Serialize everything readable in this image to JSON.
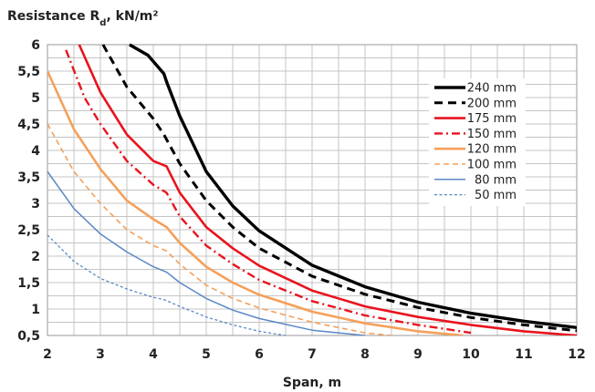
{
  "chart_data": {
    "type": "line",
    "title": "Resistance R",
    "title_subscript": "d",
    "title_suffix": ", kN/m²",
    "xlabel": "Span, m",
    "ylabel": "",
    "xlim": [
      2,
      12
    ],
    "ylim": [
      0.5,
      6
    ],
    "x_ticks": [
      "2",
      "3",
      "4",
      "5",
      "6",
      "7",
      "8",
      "9",
      "10",
      "11",
      "12"
    ],
    "y_ticks": [
      "0,5",
      "1",
      "1,5",
      "2",
      "2,5",
      "3",
      "3,5",
      "4",
      "4,5",
      "5",
      "5,5",
      "6"
    ],
    "grid": true,
    "legend_position": "top-right",
    "series": [
      {
        "name": "240 mm",
        "color": "#000000",
        "style": "solid-thick",
        "x": [
          3.55,
          3.9,
          4.2,
          4.25,
          4.5,
          5,
          5.5,
          6,
          7,
          8,
          9,
          10,
          11,
          12
        ],
        "y": [
          6.0,
          5.8,
          5.45,
          5.3,
          4.65,
          3.6,
          2.95,
          2.48,
          1.83,
          1.42,
          1.13,
          0.92,
          0.77,
          0.65
        ]
      },
      {
        "name": "200 mm",
        "color": "#000000",
        "style": "dashed",
        "x": [
          3.05,
          3.5,
          4.0,
          4.2,
          4.5,
          5,
          5.5,
          6,
          7,
          8,
          9,
          10,
          11,
          12
        ],
        "y": [
          6.0,
          5.2,
          4.6,
          4.3,
          3.75,
          3.05,
          2.55,
          2.15,
          1.62,
          1.28,
          1.03,
          0.84,
          0.7,
          0.59
        ]
      },
      {
        "name": "175 mm",
        "color": "#e8141e",
        "style": "solid",
        "x": [
          2.6,
          3,
          3.5,
          4,
          4.25,
          4.5,
          5,
          5.5,
          6,
          7,
          8,
          9,
          10,
          11,
          12
        ],
        "y": [
          6.0,
          5.1,
          4.3,
          3.8,
          3.7,
          3.2,
          2.55,
          2.15,
          1.82,
          1.35,
          1.05,
          0.85,
          0.7,
          0.58,
          0.5
        ]
      },
      {
        "name": "150 mm",
        "color": "#e8141e",
        "style": "dash-dot",
        "x": [
          2.35,
          2.7,
          3,
          3.5,
          4,
          4.25,
          4.5,
          5,
          5.5,
          6,
          7,
          8,
          9,
          10
        ],
        "y": [
          5.9,
          5.0,
          4.5,
          3.8,
          3.35,
          3.2,
          2.75,
          2.2,
          1.85,
          1.55,
          1.15,
          0.88,
          0.7,
          0.55
        ]
      },
      {
        "name": "120 mm",
        "color": "#f5a05a",
        "style": "solid",
        "x": [
          2.0,
          2.5,
          3,
          3.5,
          4,
          4.25,
          4.5,
          5,
          5.5,
          6,
          7,
          8,
          9,
          9.85
        ],
        "y": [
          5.5,
          4.4,
          3.65,
          3.05,
          2.7,
          2.55,
          2.25,
          1.8,
          1.5,
          1.27,
          0.95,
          0.73,
          0.58,
          0.5
        ]
      },
      {
        "name": "100 mm",
        "color": "#f5a05a",
        "style": "dashed-thin",
        "x": [
          2.0,
          2.5,
          3,
          3.5,
          4,
          4.25,
          4.5,
          5,
          5.5,
          6,
          7,
          8,
          8.5
        ],
        "y": [
          4.5,
          3.6,
          3.0,
          2.5,
          2.2,
          2.1,
          1.85,
          1.45,
          1.2,
          1.02,
          0.75,
          0.55,
          0.5
        ]
      },
      {
        "name": "80 mm",
        "color": "#5a87c6",
        "style": "solid-thin",
        "x": [
          2.0,
          2.5,
          3,
          3.5,
          4,
          4.25,
          4.5,
          5,
          5.5,
          6,
          7,
          8
        ],
        "y": [
          3.6,
          2.9,
          2.42,
          2.08,
          1.8,
          1.7,
          1.5,
          1.2,
          0.98,
          0.82,
          0.6,
          0.5
        ]
      },
      {
        "name": "50 mm",
        "color": "#5a87c6",
        "style": "dotted",
        "x": [
          2.0,
          2.5,
          3,
          3.5,
          4,
          4.2,
          4.5,
          5,
          5.5,
          6,
          6.5
        ],
        "y": [
          2.4,
          1.9,
          1.58,
          1.38,
          1.22,
          1.18,
          1.05,
          0.85,
          0.7,
          0.58,
          0.5
        ]
      }
    ]
  }
}
